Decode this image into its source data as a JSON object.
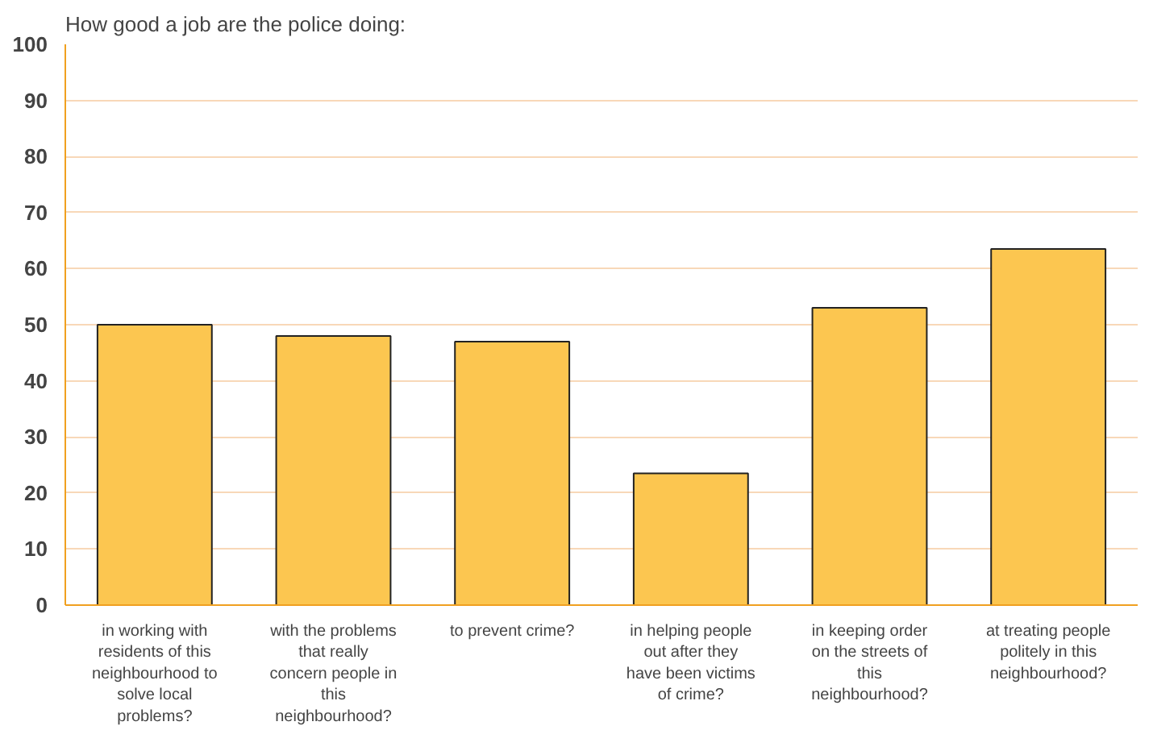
{
  "chart_data": {
    "type": "bar",
    "title": "How good a job are the police doing:",
    "categories": [
      "in working with residents of this neighbourhood to solve local problems?",
      "with the problems that really concern people in this neighbourhood?",
      "to prevent crime?",
      "in helping people out after they have been victims of crime?",
      "in keeping order on the streets of this neighbourhood?",
      "at treating people politely in this neighbourhood?"
    ],
    "values": [
      50,
      48,
      47,
      23.5,
      53,
      63.5
    ],
    "color": "#fcc650",
    "ylim": [
      0,
      100
    ],
    "yticks": [
      0,
      10,
      20,
      30,
      40,
      50,
      60,
      70,
      80,
      90,
      100
    ],
    "grid": "y"
  }
}
